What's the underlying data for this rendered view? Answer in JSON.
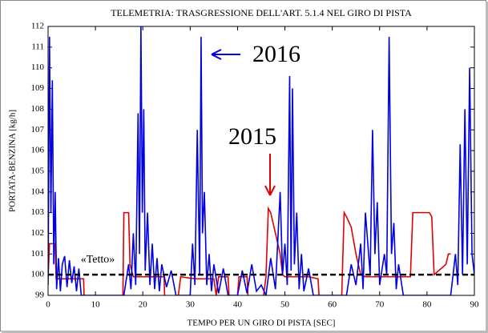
{
  "chart_data": {
    "type": "line",
    "title": "TELEMETRIA: TRASGRESSIONE DELL'ART. 5.1.4 NEL GIRO DI PISTA",
    "x_label": "TEMPO PER UN GIRO DI PISTA  [SEC]",
    "y_label": "PORTATA-BENZINA  [kg/h]",
    "xlim": [
      0,
      90
    ],
    "ylim": [
      99,
      112
    ],
    "xticks": [
      0,
      10,
      20,
      30,
      40,
      50,
      60,
      70,
      80,
      90
    ],
    "yticks": [
      99,
      100,
      101,
      102,
      103,
      104,
      105,
      106,
      107,
      108,
      109,
      110,
      111,
      112
    ],
    "threshold": 100,
    "threshold_label": "«Tetto»",
    "series": [
      {
        "name": "2015",
        "color": "#e00000",
        "x": [
          0,
          0.3,
          1.5,
          1.7,
          7.5,
          7.6,
          null,
          15.8,
          16,
          17,
          17.3,
          18,
          24.5,
          24.6,
          null,
          27.5,
          28,
          31,
          35,
          35.5,
          36,
          38,
          38.2,
          null,
          40,
          40.3,
          42,
          42.2,
          null,
          45.5,
          46,
          46.5,
          47,
          48,
          49,
          49.5,
          50,
          55,
          57,
          57.2,
          null,
          62,
          62.5,
          63,
          64,
          65,
          66,
          67,
          70,
          75,
          76.5,
          77,
          80.5,
          81,
          81.5,
          84,
          84.5,
          85
        ],
        "values": [
          99.8,
          101.5,
          101.5,
          99.8,
          99.8,
          99,
          null,
          99,
          103,
          103,
          100.5,
          99.9,
          99.9,
          99,
          null,
          99,
          99.9,
          99.8,
          99.8,
          99,
          99.9,
          99.9,
          99,
          null,
          99,
          99.9,
          99.9,
          99,
          null,
          99,
          99.9,
          103.2,
          103,
          102,
          101,
          100,
          99.9,
          99.9,
          99.8,
          99,
          null,
          99,
          103,
          102.8,
          102.3,
          101,
          100,
          99.9,
          99.9,
          99.9,
          99.9,
          103,
          103,
          102.8,
          100,
          100.5,
          101,
          101
        ]
      },
      {
        "name": "2016",
        "color": "#0000e0",
        "x": [
          0,
          0.3,
          0.6,
          0.9,
          1.2,
          1.5,
          1.8,
          2.2,
          2.6,
          3,
          3.5,
          4,
          4.5,
          5,
          5.5,
          6,
          6.5,
          7,
          16,
          17,
          17.5,
          18,
          18.5,
          19,
          19.3,
          19.6,
          19.9,
          20.2,
          20.5,
          21,
          21.5,
          22,
          22.5,
          23,
          23.5,
          24,
          25,
          26,
          27,
          30,
          30.5,
          31,
          31.5,
          32,
          32.3,
          32.6,
          33,
          33.5,
          34,
          34.5,
          35,
          36,
          37,
          38,
          40,
          41,
          42,
          43,
          44,
          45,
          46,
          47,
          48,
          49,
          49.5,
          50,
          50.5,
          51,
          51.3,
          51.6,
          52,
          52.5,
          53,
          53.5,
          54,
          55,
          56,
          63,
          64,
          65,
          66,
          66.5,
          67,
          68,
          68.5,
          69,
          69.5,
          70,
          71,
          71.5,
          72,
          72.5,
          73,
          73.5,
          74,
          75,
          85,
          86,
          86.5,
          87,
          87.5,
          88,
          88.5,
          89,
          89.5,
          90
        ],
        "values": [
          99.5,
          111.5,
          103,
          109.4,
          100.5,
          104,
          99.3,
          100.8,
          99.2,
          100.5,
          100.9,
          99.4,
          100.7,
          99.6,
          100.4,
          99.2,
          100.3,
          99,
          99,
          100.5,
          99.3,
          102,
          99.5,
          107.8,
          101,
          112,
          103,
          108,
          100.2,
          103,
          99.5,
          101.5,
          99.3,
          100.8,
          99.2,
          100.5,
          99.4,
          100.2,
          99,
          99,
          101.5,
          99.5,
          107,
          100,
          111.5,
          102,
          104,
          99.5,
          101,
          99.2,
          100.5,
          99.1,
          100.3,
          99,
          99,
          100.2,
          99.1,
          100.5,
          99.2,
          99.5,
          99,
          100.8,
          99.3,
          104,
          100,
          101.5,
          99.5,
          109.6,
          100.2,
          109,
          100.5,
          103,
          99.3,
          101,
          99.2,
          100.3,
          99,
          99,
          100.5,
          99.5,
          101.5,
          99.3,
          103,
          100,
          107,
          101,
          103.5,
          99.5,
          101,
          100,
          111.5,
          101,
          102.5,
          99.3,
          100.5,
          99,
          99,
          101,
          99.5,
          106.3,
          100,
          108,
          100.5,
          110,
          101,
          100
        ]
      }
    ]
  }
}
